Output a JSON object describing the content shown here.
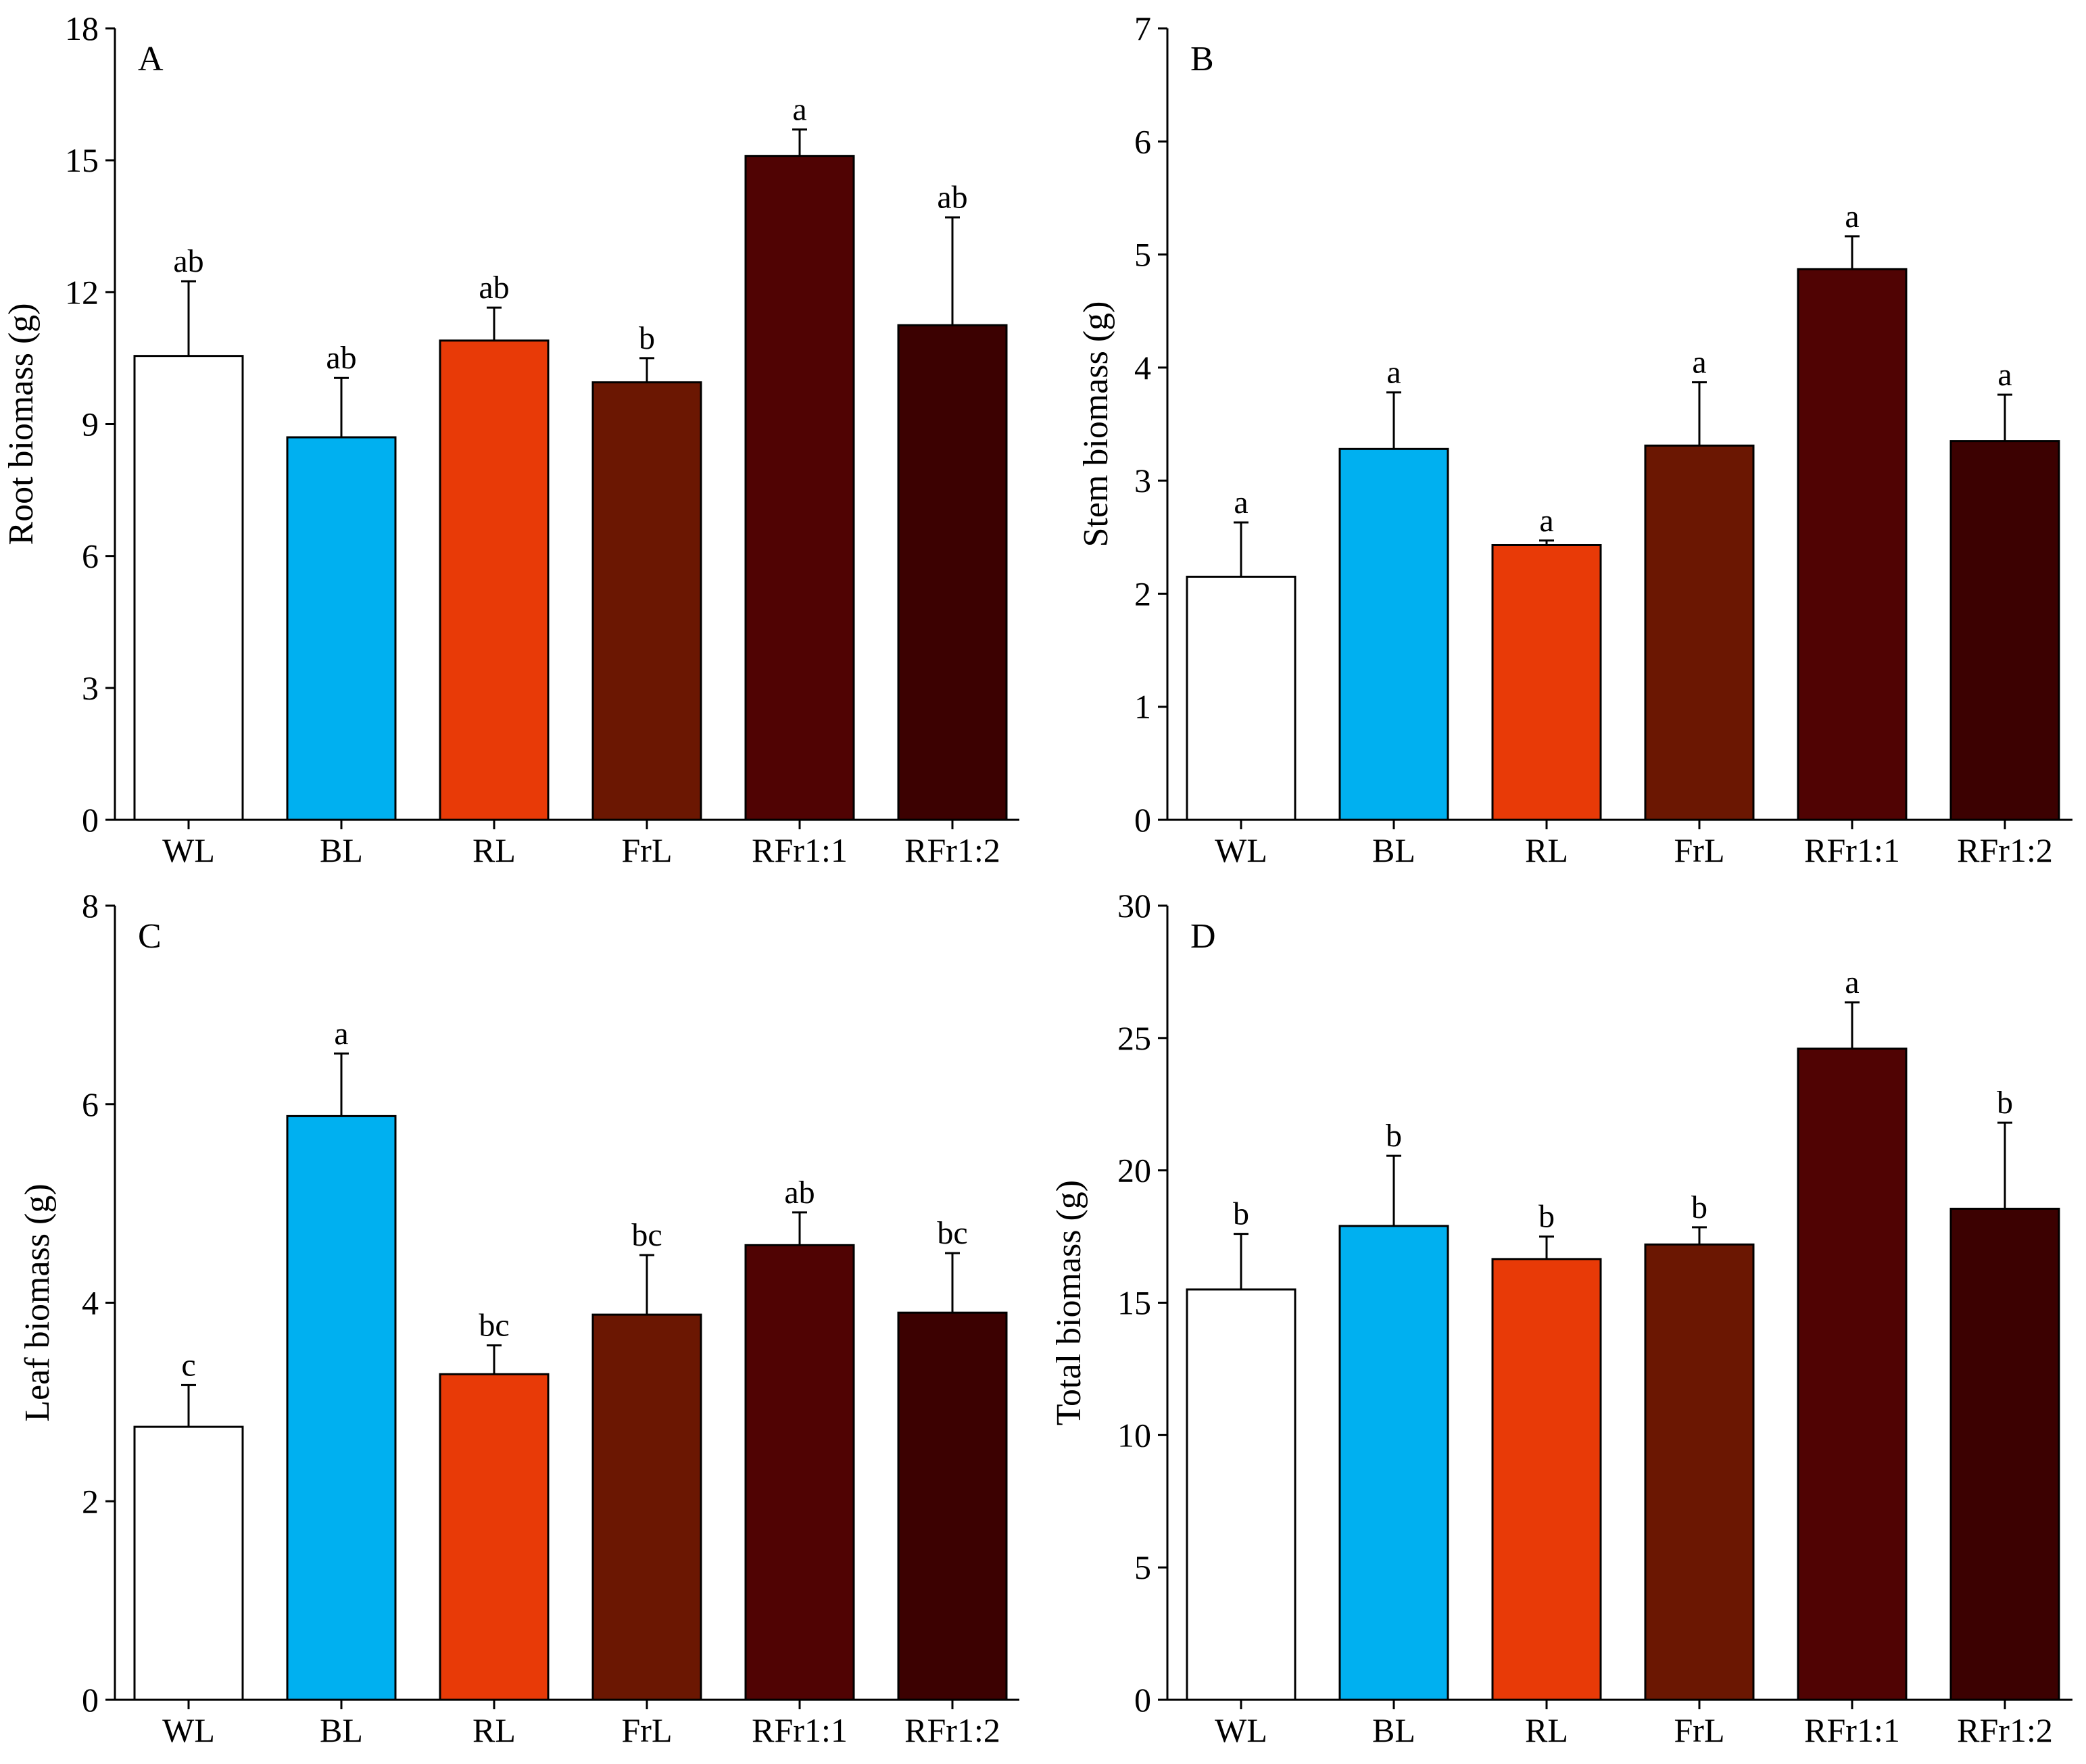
{
  "colors": {
    "WL": "#ffffff",
    "BL": "#00b0f0",
    "RL": "#e83a07",
    "FrL": "#6b1702",
    "RFr1:1": "#500303",
    "RFr1:2": "#3c0101",
    "stroke": "#000000"
  },
  "chart_data": [
    {
      "type": "bar",
      "panel": "A",
      "categories": [
        "WL",
        "BL",
        "RL",
        "FrL",
        "RFr1:1",
        "RFr1:2"
      ],
      "values": [
        10.55,
        8.7,
        10.9,
        9.95,
        15.1,
        11.25
      ],
      "errors": [
        1.7,
        1.35,
        0.75,
        0.55,
        0.6,
        2.45
      ],
      "letters": [
        "ab",
        "ab",
        "ab",
        "b",
        "a",
        "ab"
      ],
      "ylabel": "Root biomass (g)",
      "ylim": [
        0,
        18
      ],
      "yticks": [
        0,
        3,
        6,
        9,
        12,
        15,
        18
      ]
    },
    {
      "type": "bar",
      "panel": "B",
      "categories": [
        "WL",
        "BL",
        "RL",
        "FrL",
        "RFr1:1",
        "RFr1:2"
      ],
      "values": [
        2.15,
        3.28,
        2.43,
        3.31,
        4.87,
        3.35
      ],
      "errors": [
        0.48,
        0.5,
        0.04,
        0.56,
        0.29,
        0.41
      ],
      "letters": [
        "a",
        "a",
        "a",
        "a",
        "a",
        "a"
      ],
      "ylabel": "Stem biomass (g)",
      "ylim": [
        0,
        7
      ],
      "yticks": [
        0,
        1,
        2,
        3,
        4,
        5,
        6,
        7
      ]
    },
    {
      "type": "bar",
      "panel": "C",
      "categories": [
        "WL",
        "BL",
        "RL",
        "FrL",
        "RFr1:1",
        "RFr1:2"
      ],
      "values": [
        2.75,
        5.88,
        3.28,
        3.88,
        4.58,
        3.9
      ],
      "errors": [
        0.42,
        0.63,
        0.29,
        0.6,
        0.33,
        0.6
      ],
      "letters": [
        "c",
        "a",
        "bc",
        "bc",
        "ab",
        "bc"
      ],
      "ylabel": "Leaf biomass (g)",
      "ylim": [
        0,
        8
      ],
      "yticks": [
        0,
        2,
        4,
        6,
        8
      ]
    },
    {
      "type": "bar",
      "panel": "D",
      "categories": [
        "WL",
        "BL",
        "RL",
        "FrL",
        "RFr1:1",
        "RFr1:2"
      ],
      "values": [
        15.5,
        17.9,
        16.65,
        17.2,
        24.6,
        18.55
      ],
      "errors": [
        2.1,
        2.65,
        0.85,
        0.65,
        1.75,
        3.25
      ],
      "letters": [
        "b",
        "b",
        "b",
        "b",
        "a",
        "b"
      ],
      "ylabel": "Total biomass (g)",
      "ylim": [
        0,
        30
      ],
      "yticks": [
        0,
        5,
        10,
        15,
        20,
        25,
        30
      ]
    }
  ]
}
